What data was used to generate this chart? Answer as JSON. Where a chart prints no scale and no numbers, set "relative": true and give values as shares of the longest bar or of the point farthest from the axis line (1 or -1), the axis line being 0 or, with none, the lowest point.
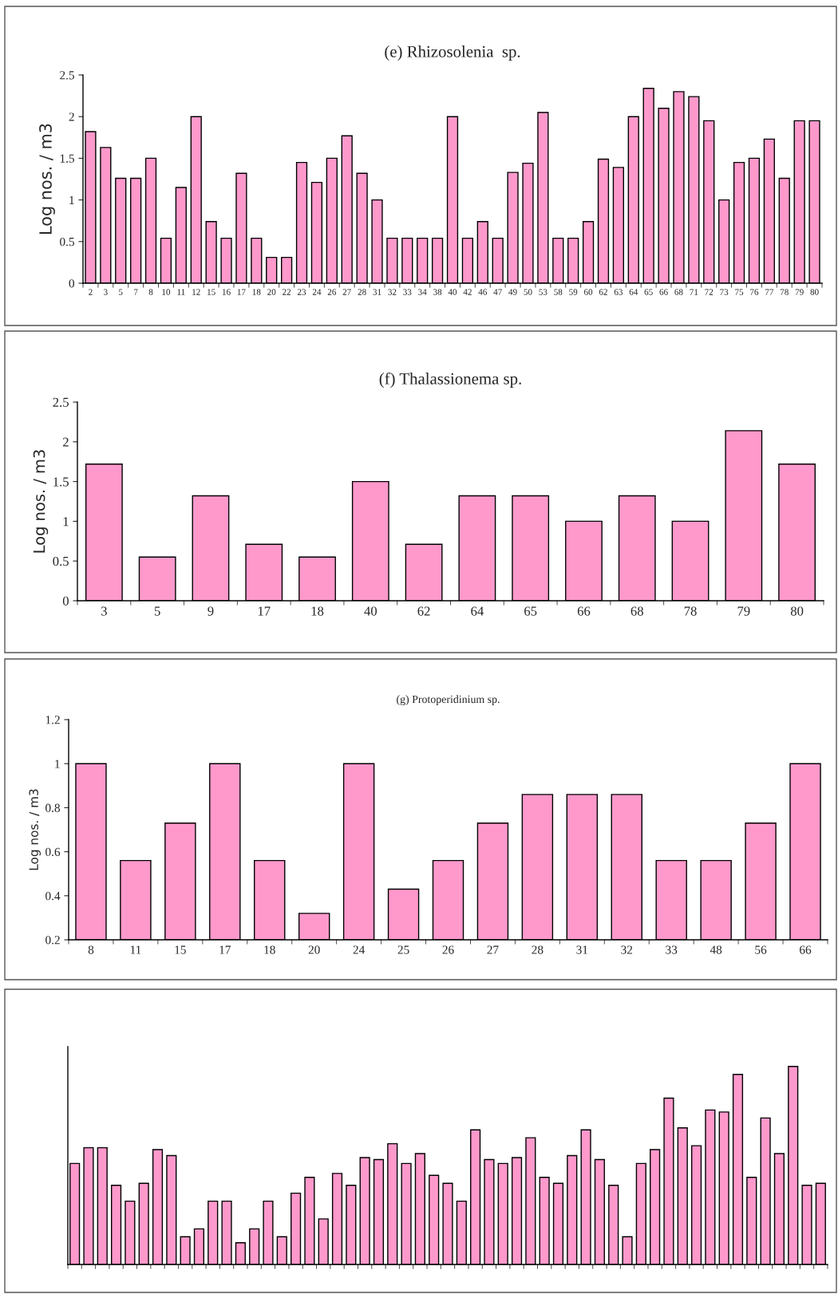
{
  "chart_data": [
    {
      "type": "bar",
      "title": "(e) Rhizosolenia  sp.",
      "ylabel": "Log nos. / m3",
      "color": "#ff99cc",
      "ylim": [
        0,
        2.5
      ],
      "yticks": [
        0,
        0.5,
        1,
        1.5,
        2,
        2.5
      ],
      "grid": false,
      "legend": false,
      "categories": [
        "2",
        "3",
        "5",
        "7",
        "8",
        "10",
        "11",
        "12",
        "15",
        "16",
        "17",
        "18",
        "20",
        "22",
        "23",
        "24",
        "26",
        "27",
        "28",
        "31",
        "32",
        "33",
        "34",
        "38",
        "40",
        "42",
        "46",
        "47",
        "49",
        "50",
        "53",
        "58",
        "59",
        "60",
        "62",
        "63",
        "64",
        "65",
        "66",
        "68",
        "71",
        "72",
        "73",
        "75",
        "76",
        "77",
        "78",
        "79",
        "80"
      ],
      "values": [
        1.82,
        1.63,
        1.26,
        1.26,
        1.5,
        0.54,
        1.15,
        2.0,
        0.74,
        0.54,
        1.32,
        0.54,
        0.31,
        0.31,
        1.45,
        1.21,
        1.5,
        1.77,
        1.32,
        1.0,
        0.54,
        0.54,
        0.54,
        0.54,
        2.0,
        0.54,
        0.74,
        0.54,
        1.33,
        1.44,
        2.05,
        0.54,
        0.54,
        0.74,
        1.49,
        1.39,
        2.0,
        2.34,
        2.1,
        2.3,
        2.24,
        1.95,
        1.0,
        1.45,
        1.5,
        1.73,
        1.26,
        1.95,
        1.95
      ]
    },
    {
      "type": "bar",
      "title": "(f) Thalassionema sp.",
      "ylabel": "Log nos. / m3",
      "color": "#ff99cc",
      "ylim": [
        0,
        2.5
      ],
      "yticks": [
        0,
        0.5,
        1,
        1.5,
        2,
        2.5
      ],
      "grid": false,
      "legend": false,
      "categories": [
        "3",
        "5",
        "9",
        "17",
        "18",
        "40",
        "62",
        "64",
        "65",
        "66",
        "68",
        "78",
        "79",
        "80"
      ],
      "values": [
        1.72,
        0.55,
        1.32,
        0.71,
        0.55,
        1.5,
        0.71,
        1.32,
        1.32,
        1.0,
        1.32,
        1.0,
        2.14,
        1.72
      ]
    },
    {
      "type": "bar",
      "title": "(g) Protoperidinium sp.",
      "ylabel": "Log nos. / m3",
      "color": "#ff99cc",
      "ylim": [
        0.2,
        1.2
      ],
      "yticks": [
        0.2,
        0.4,
        0.6,
        0.8,
        1,
        1.2
      ],
      "grid": false,
      "legend": false,
      "categories": [
        "8",
        "11",
        "15",
        "17",
        "18",
        "20",
        "24",
        "25",
        "26",
        "27",
        "28",
        "31",
        "32",
        "33",
        "48",
        "56",
        "66"
      ],
      "values": [
        1.0,
        0.56,
        0.73,
        1.0,
        0.56,
        0.32,
        1.0,
        0.43,
        0.56,
        0.73,
        0.86,
        0.86,
        0.86,
        0.56,
        0.56,
        0.73,
        1.0
      ]
    },
    {
      "type": "bar",
      "relative": true,
      "color": "#ff99cc",
      "grid": false,
      "legend": false,
      "categories": [
        null,
        null,
        null,
        null,
        null,
        null,
        null,
        null,
        null,
        null,
        null,
        null,
        null,
        null,
        null,
        null,
        null,
        null,
        null,
        null,
        null,
        null,
        null,
        null,
        null,
        null,
        null,
        null,
        null,
        null,
        null,
        null,
        null,
        null,
        null,
        null,
        null,
        null,
        null,
        null,
        null,
        null,
        null,
        null,
        null,
        null,
        null,
        null,
        null,
        null,
        null,
        null,
        null,
        null,
        null
      ],
      "values": [
        0.51,
        0.59,
        0.59,
        0.4,
        0.32,
        0.41,
        0.58,
        0.55,
        0.14,
        0.18,
        0.32,
        0.32,
        0.11,
        0.18,
        0.32,
        0.14,
        0.36,
        0.44,
        0.23,
        0.46,
        0.4,
        0.54,
        0.53,
        0.61,
        0.51,
        0.56,
        0.45,
        0.41,
        0.32,
        0.68,
        0.53,
        0.51,
        0.54,
        0.64,
        0.44,
        0.41,
        0.55,
        0.68,
        0.53,
        0.4,
        0.14,
        0.51,
        0.58,
        0.84,
        0.69,
        0.6,
        0.78,
        0.77,
        0.96,
        0.44,
        0.74,
        0.56,
        1.0,
        0.4,
        0.41
      ]
    }
  ]
}
